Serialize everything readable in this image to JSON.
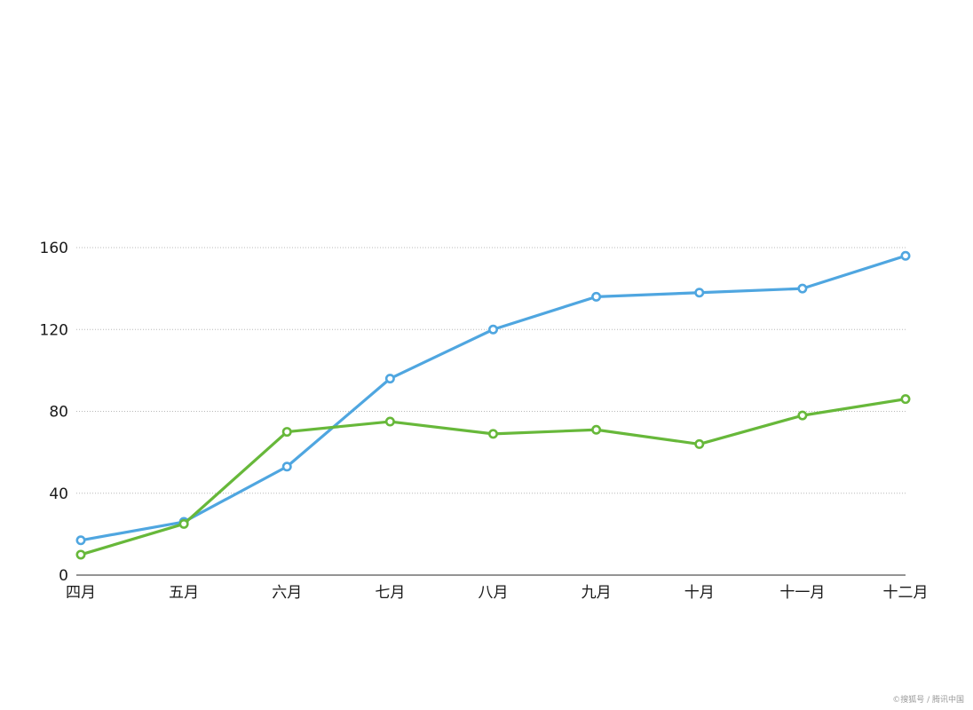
{
  "chart_data": {
    "type": "line",
    "title": "",
    "xlabel": "",
    "ylabel": "",
    "categories": [
      "四月",
      "五月",
      "六月",
      "七月",
      "八月",
      "九月",
      "十月",
      "十一月",
      "十二月"
    ],
    "yticks": [
      "0",
      "40",
      "80",
      "120",
      "160"
    ],
    "ylim": [
      0,
      160
    ],
    "grid": true,
    "series": [
      {
        "color": "#4fa6e0",
        "values": [
          17,
          26,
          53,
          96,
          120,
          136,
          138,
          140,
          156
        ]
      },
      {
        "color": "#67b83a",
        "values": [
          10,
          25,
          70,
          75,
          69,
          71,
          64,
          78,
          86
        ]
      }
    ]
  },
  "watermark": "©搜狐号 / 腾讯中国"
}
